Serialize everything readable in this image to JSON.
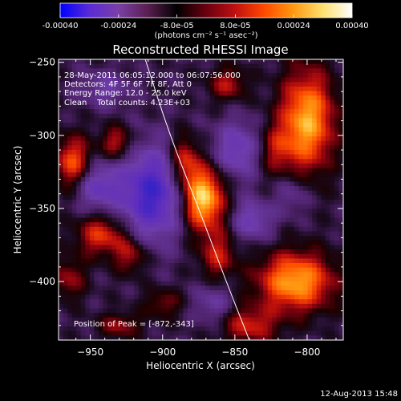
{
  "colorbar": {
    "ticks": [
      "-0.00040",
      "-0.00024",
      "-8.0e-05",
      "8.0e-05",
      "0.00024",
      "0.00040"
    ],
    "tick_values": [
      -0.0004,
      -0.00024,
      -8e-05,
      8e-05,
      0.00024,
      0.0004
    ],
    "range": [
      -0.0004,
      0.0004
    ],
    "unit_label": "(photons cm⁻² s⁻¹ asec⁻²)",
    "stops": [
      "#0000ff",
      "#5a2bd6",
      "#7b3fa6",
      "#5a1f50",
      "#000000",
      "#6a0010",
      "#c01010",
      "#ff4a00",
      "#ff9a10",
      "#ffe070",
      "#ffffff"
    ]
  },
  "chart_data": {
    "type": "heatmap",
    "title": "Reconstructed RHESSI Image",
    "xlabel": "Heliocentric X (arcsec)",
    "ylabel": "Heliocentric Y (arcsec)",
    "xlim": [
      -972,
      -775
    ],
    "ylim": [
      -440,
      -248
    ],
    "x_ticks": [
      -950,
      -900,
      -850,
      -800
    ],
    "y_ticks": [
      -250,
      -300,
      -350,
      -400
    ],
    "info_lines": [
      "28-May-2011 06:05:12.000 to 06:07:56.000",
      "Detectors: 4F 5F 6F 7F 8F, Att 0",
      "Energy Range: 12.0 - 25.0 keV",
      "Clean    Total counts: 4.23E+03"
    ],
    "peak_label": "Position of Peak = [-872,-343]",
    "peak": [
      -872,
      -343
    ],
    "limb_curve": [
      [
        -912,
        -248
      ],
      [
        -895,
        -300
      ],
      [
        -875,
        -350
      ],
      [
        -856,
        -400
      ],
      [
        -840,
        -440
      ]
    ],
    "sources": [
      {
        "x": -872,
        "y": -343,
        "amp": 1.0,
        "sx": 10,
        "sy": 15
      },
      {
        "x": -885,
        "y": -318,
        "amp": 0.55,
        "sx": 7,
        "sy": 12
      },
      {
        "x": -862,
        "y": -382,
        "amp": 0.42,
        "sx": 9,
        "sy": 12
      },
      {
        "x": -800,
        "y": -290,
        "amp": 0.85,
        "sx": 13,
        "sy": 24
      },
      {
        "x": -822,
        "y": -310,
        "amp": 0.35,
        "sx": 9,
        "sy": 12
      },
      {
        "x": -808,
        "y": -400,
        "amp": 0.85,
        "sx": 18,
        "sy": 14
      },
      {
        "x": -840,
        "y": -430,
        "amp": 0.45,
        "sx": 14,
        "sy": 9
      },
      {
        "x": -962,
        "y": -318,
        "amp": 0.6,
        "sx": 9,
        "sy": 12
      },
      {
        "x": -932,
        "y": -305,
        "amp": 0.45,
        "sx": 8,
        "sy": 8
      },
      {
        "x": -942,
        "y": -368,
        "amp": 0.55,
        "sx": 12,
        "sy": 10
      },
      {
        "x": -922,
        "y": -382,
        "amp": 0.4,
        "sx": 8,
        "sy": 9
      },
      {
        "x": -965,
        "y": -398,
        "amp": 0.35,
        "sx": 8,
        "sy": 10
      },
      {
        "x": -855,
        "y": -265,
        "amp": 0.4,
        "sx": 9,
        "sy": 8
      },
      {
        "x": -930,
        "y": -430,
        "amp": 0.35,
        "sx": 10,
        "sy": 6
      },
      {
        "x": -900,
        "y": -415,
        "amp": 0.3,
        "sx": 9,
        "sy": 7
      },
      {
        "x": -908,
        "y": -340,
        "amp": -0.75,
        "sx": 16,
        "sy": 22
      },
      {
        "x": -945,
        "y": -335,
        "amp": -0.45,
        "sx": 10,
        "sy": 12
      },
      {
        "x": -848,
        "y": -310,
        "amp": -0.45,
        "sx": 12,
        "sy": 14
      },
      {
        "x": -838,
        "y": -358,
        "amp": -0.4,
        "sx": 10,
        "sy": 10
      },
      {
        "x": -940,
        "y": -268,
        "amp": -0.3,
        "sx": 12,
        "sy": 8
      },
      {
        "x": -865,
        "y": -415,
        "amp": -0.3,
        "sx": 9,
        "sy": 10
      },
      {
        "x": -810,
        "y": -340,
        "amp": -0.25,
        "sx": 8,
        "sy": 10
      }
    ]
  },
  "footer": {
    "timestamp": "12-Aug-2013 15:48"
  }
}
